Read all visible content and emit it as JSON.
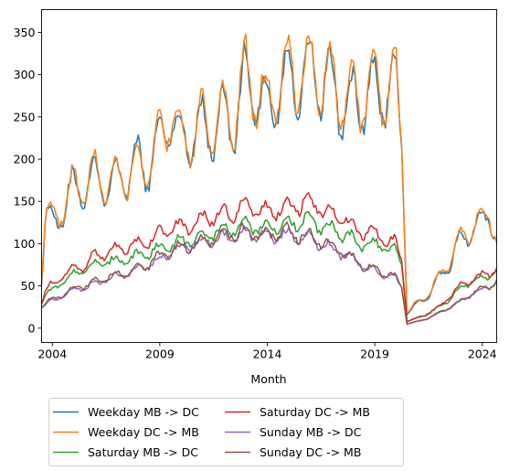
{
  "chart_data": {
    "type": "line",
    "xlabel": "Month",
    "ylabel": "",
    "title": "",
    "xlim": [
      2003.5,
      2024.67
    ],
    "ylim": [
      -17,
      377
    ],
    "x_ticks": [
      2004,
      2009,
      2014,
      2019,
      2024
    ],
    "x_tick_labels": [
      "2004",
      "2009",
      "2014",
      "2019",
      "2024"
    ],
    "y_ticks": [
      0,
      50,
      100,
      150,
      200,
      250,
      300,
      350
    ],
    "y_tick_labels": [
      "0",
      "50",
      "100",
      "150",
      "200",
      "250",
      "300",
      "350"
    ],
    "grid": false,
    "legend_position": "below-left",
    "x_knots": [
      2003.5,
      2003.7,
      2004.0,
      2004.5,
      2005.0,
      2005.5,
      2006.0,
      2006.5,
      2007.0,
      2007.5,
      2008.0,
      2008.5,
      2009.0,
      2009.5,
      2010.0,
      2010.5,
      2011.0,
      2011.5,
      2012.0,
      2012.5,
      2013.0,
      2013.5,
      2014.0,
      2014.5,
      2015.0,
      2015.5,
      2016.0,
      2016.5,
      2017.0,
      2017.5,
      2018.0,
      2018.5,
      2019.0,
      2019.5,
      2020.0,
      2020.25,
      2020.5,
      2021.0,
      2021.5,
      2022.0,
      2022.5,
      2023.0,
      2023.5,
      2024.0,
      2024.33,
      2024.67
    ],
    "series": [
      {
        "name": "Weekday MB -> DC",
        "color": "#1f77b4",
        "values": [
          60,
          135,
          125,
          140,
          170,
          160,
          185,
          165,
          180,
          175,
          200,
          185,
          225,
          250,
          225,
          220,
          245,
          230,
          255,
          240,
          300,
          270,
          265,
          275,
          300,
          290,
          310,
          285,
          290,
          260,
          270,
          265,
          285,
          275,
          290,
          215,
          18,
          28,
          40,
          58,
          78,
          105,
          115,
          125,
          140,
          105
        ],
        "amplitude": 1.0
      },
      {
        "name": "Weekday DC -> MB",
        "color": "#ff7f0e",
        "values": [
          60,
          138,
          127,
          142,
          172,
          162,
          187,
          168,
          182,
          178,
          195,
          188,
          228,
          255,
          228,
          222,
          248,
          232,
          258,
          245,
          305,
          275,
          268,
          280,
          305,
          295,
          312,
          288,
          295,
          268,
          275,
          270,
          290,
          278,
          290,
          218,
          20,
          30,
          42,
          60,
          80,
          108,
          118,
          127,
          140,
          105
        ],
        "amplitude": 1.0
      },
      {
        "name": "Saturday MB -> DC",
        "color": "#2ca02c",
        "values": [
          30,
          40,
          45,
          55,
          65,
          68,
          75,
          78,
          80,
          82,
          85,
          88,
          95,
          100,
          102,
          105,
          110,
          112,
          115,
          118,
          122,
          120,
          118,
          122,
          125,
          125,
          128,
          122,
          118,
          110,
          105,
          100,
          100,
          95,
          92,
          75,
          8,
          12,
          18,
          25,
          35,
          48,
          55,
          58,
          62,
          70
        ],
        "amplitude": 0.5
      },
      {
        "name": "Saturday DC -> MB",
        "color": "#d62728",
        "values": [
          32,
          45,
          52,
          62,
          72,
          75,
          85,
          88,
          92,
          95,
          100,
          102,
          115,
          118,
          120,
          122,
          130,
          132,
          135,
          138,
          142,
          140,
          138,
          142,
          145,
          145,
          148,
          142,
          138,
          130,
          120,
          115,
          110,
          105,
          100,
          80,
          8,
          12,
          18,
          25,
          38,
          50,
          58,
          62,
          66,
          72
        ],
        "amplitude": 0.55
      },
      {
        "name": "Sunday MB -> DC",
        "color": "#9467bd",
        "values": [
          25,
          28,
          32,
          38,
          45,
          48,
          52,
          58,
          62,
          65,
          70,
          74,
          82,
          90,
          95,
          98,
          102,
          105,
          108,
          110,
          112,
          110,
          108,
          110,
          112,
          108,
          105,
          100,
          95,
          88,
          80,
          72,
          68,
          62,
          58,
          48,
          5,
          8,
          12,
          18,
          25,
          32,
          40,
          45,
          50,
          55
        ],
        "amplitude": 0.45
      },
      {
        "name": "Sunday DC -> MB",
        "color": "#8c564b",
        "values": [
          25,
          30,
          34,
          40,
          48,
          50,
          55,
          60,
          63,
          66,
          72,
          76,
          85,
          92,
          96,
          98,
          104,
          106,
          110,
          112,
          115,
          112,
          110,
          112,
          114,
          110,
          108,
          102,
          98,
          90,
          82,
          74,
          70,
          64,
          60,
          48,
          5,
          8,
          12,
          18,
          25,
          32,
          42,
          46,
          50,
          55
        ],
        "amplitude": 0.5
      }
    ]
  }
}
